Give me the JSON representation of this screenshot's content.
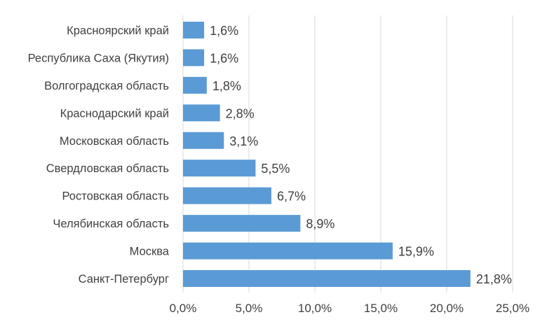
{
  "chart_data": {
    "type": "bar",
    "orientation": "horizontal",
    "title": "",
    "xlabel": "",
    "ylabel": "",
    "categories": [
      "Красноярский край",
      "Республика Саха (Якутия)",
      "Волгоградская область",
      "Краснодарский край",
      "Московская область",
      "Свердловская область",
      "Ростовская область",
      "Челябинская область",
      "Москва",
      "Санкт-Петербург"
    ],
    "values": [
      1.6,
      1.6,
      1.8,
      2.8,
      3.1,
      5.5,
      6.7,
      8.9,
      15.9,
      21.8
    ],
    "data_labels": [
      "1,6%",
      "1,6%",
      "1,8%",
      "2,8%",
      "3,1%",
      "5,5%",
      "6,7%",
      "8,9%",
      "15,9%",
      "21,8%"
    ],
    "xlim": [
      0,
      25
    ],
    "xticks": [
      0,
      5,
      10,
      15,
      20,
      25
    ],
    "xtick_labels": [
      "0,0%",
      "5,0%",
      "10,0%",
      "15,0%",
      "20,0%",
      "25,0%"
    ],
    "grid": "vertical",
    "legend": "none",
    "bar_color": "#5b9bd5",
    "grid_color": "#d9d9d9"
  }
}
